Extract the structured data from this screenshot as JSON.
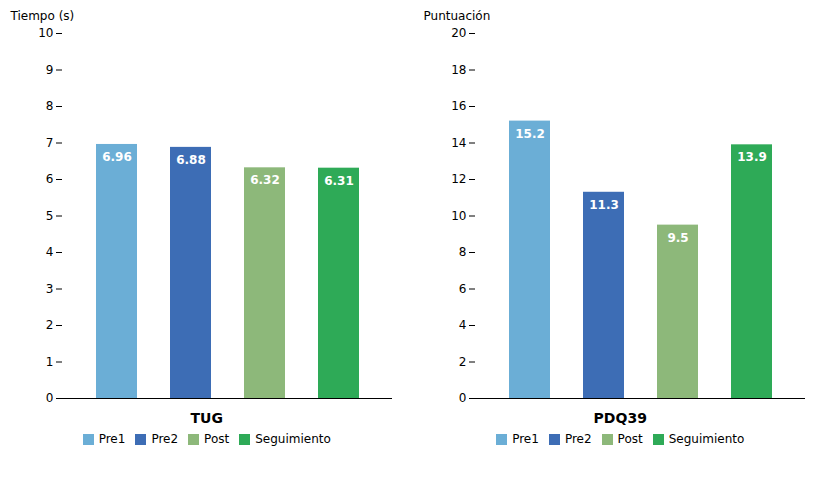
{
  "chart_data": [
    {
      "type": "bar",
      "categories": [
        "Pre1",
        "Pre2",
        "Post",
        "Seguimiento"
      ],
      "values": [
        6.96,
        6.88,
        6.32,
        6.31
      ],
      "colors": [
        "#6BAED6",
        "#3D6DB5",
        "#8DB87A",
        "#2EAA57"
      ],
      "xlabel": "TUG",
      "ylabel": "Tiempo (s)",
      "ylim": [
        0,
        10
      ],
      "yticks": [
        0,
        1,
        2,
        3,
        4,
        5,
        6,
        7,
        8,
        9,
        10
      ],
      "data_labels": true,
      "tick_labels": "y",
      "grid": false,
      "legend": "bottom"
    },
    {
      "type": "bar",
      "categories": [
        "Pre1",
        "Pre2",
        "Post",
        "Seguimiento"
      ],
      "values": [
        15.2,
        11.3,
        9.5,
        13.9
      ],
      "colors": [
        "#6BAED6",
        "#3D6DB5",
        "#8DB87A",
        "#2EAA57"
      ],
      "xlabel": "PDQ39",
      "ylabel": "Puntuación",
      "ylim": [
        0,
        20
      ],
      "yticks": [
        0,
        2,
        4,
        6,
        8,
        10,
        12,
        14,
        16,
        18,
        20
      ],
      "data_labels": true,
      "tick_labels": "y",
      "grid": false,
      "legend": "bottom"
    }
  ]
}
